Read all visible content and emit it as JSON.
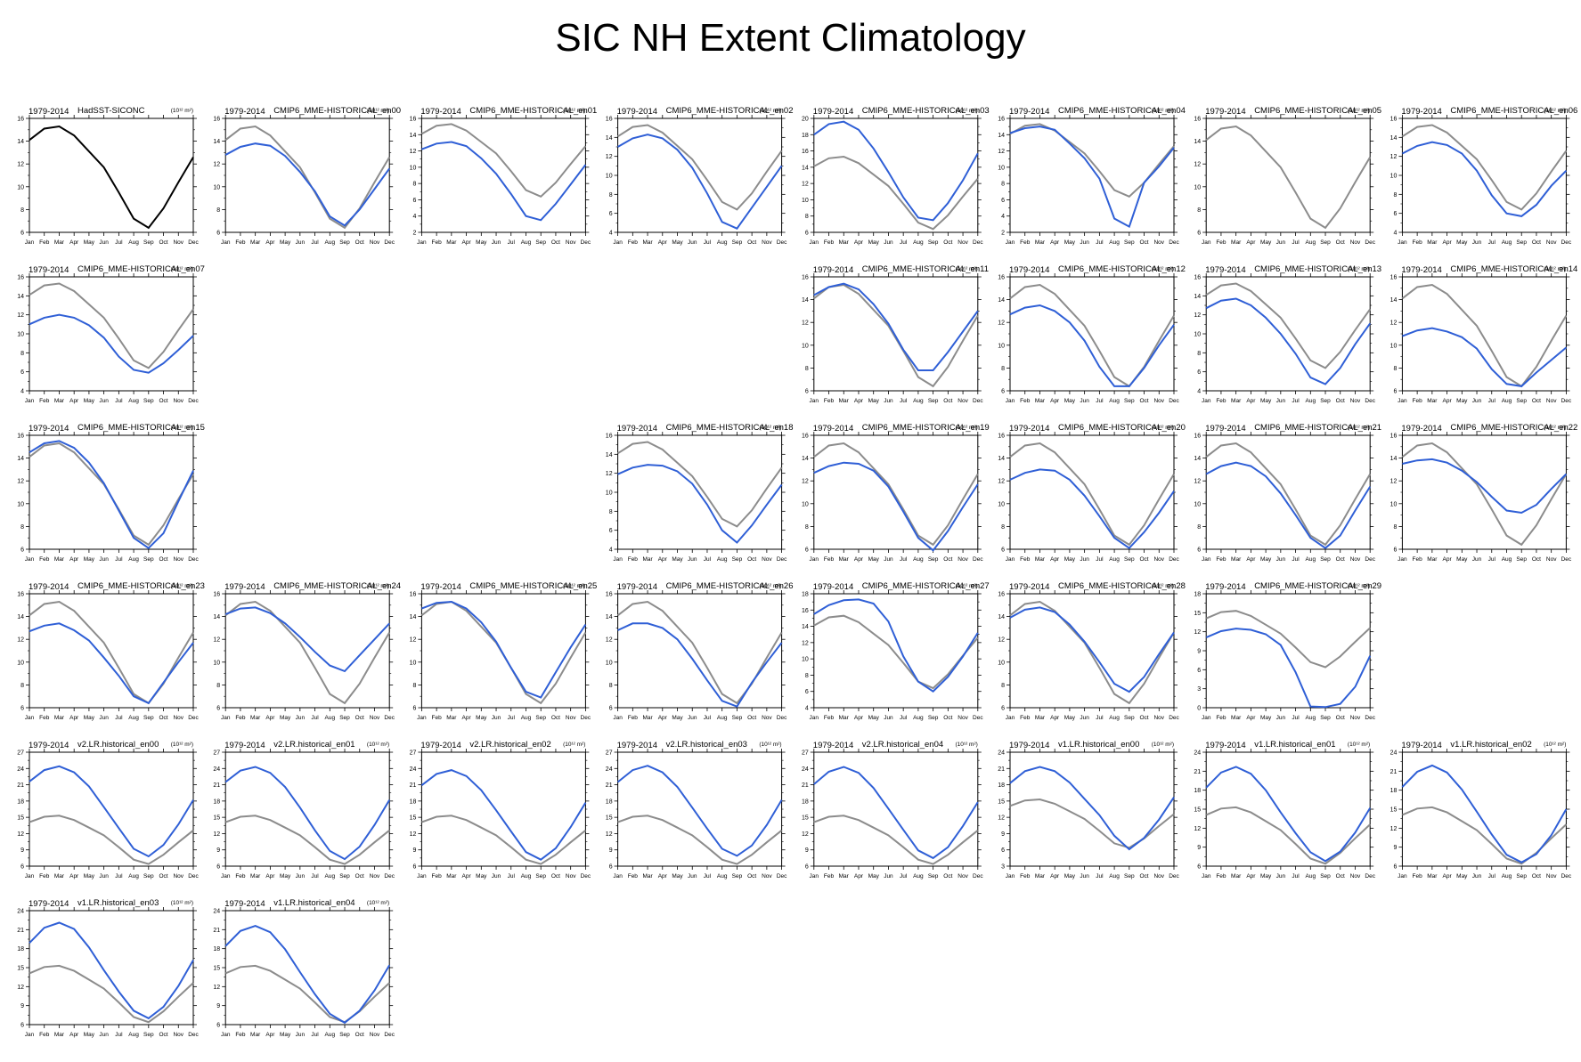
{
  "title": "SIC NH Extent Climatology",
  "colors": {
    "obs": "#000000",
    "obs_ref": "#8c8c8c",
    "model": "#2f5fd6"
  },
  "chart_data": {
    "type": "line",
    "title": "SIC NH Extent Climatology",
    "months": [
      "Jan",
      "Feb",
      "Mar",
      "Apr",
      "May",
      "Jun",
      "Jul",
      "Aug",
      "Sep",
      "Oct",
      "Nov",
      "Dec"
    ],
    "reference": [
      14.1,
      15.1,
      15.3,
      14.5,
      13.1,
      11.7,
      9.5,
      7.2,
      6.4,
      8.1,
      10.4,
      12.6
    ],
    "units": "(10¹² m²)",
    "period": "1979-2014",
    "panels": [
      {
        "name": "HadSST-SICONC",
        "ylim": [
          6,
          16
        ],
        "ticks": [
          6,
          8,
          10,
          12,
          14,
          16
        ],
        "obs": true,
        "values": [
          14.1,
          15.1,
          15.3,
          14.5,
          13.1,
          11.7,
          9.5,
          7.2,
          6.4,
          8.1,
          10.4,
          12.6
        ]
      },
      {
        "name": "CMIP6_MME-HISTORICAL_en00",
        "ylim": [
          6,
          16
        ],
        "ticks": [
          6,
          8,
          10,
          12,
          14,
          16
        ],
        "values": [
          12.8,
          13.5,
          13.8,
          13.6,
          12.7,
          11.3,
          9.6,
          7.4,
          6.6,
          8.0,
          9.8,
          11.6
        ]
      },
      {
        "name": "CMIP6_MME-HISTORICAL_en01",
        "ylim": [
          2,
          16
        ],
        "ticks": [
          2,
          4,
          6,
          8,
          10,
          12,
          14,
          16
        ],
        "values": [
          12.2,
          12.9,
          13.1,
          12.6,
          11.1,
          9.2,
          6.7,
          4.0,
          3.5,
          5.5,
          7.9,
          10.3
        ]
      },
      {
        "name": "CMIP6_MME-HISTORICAL_en02",
        "ylim": [
          4,
          16
        ],
        "ticks": [
          4,
          6,
          8,
          10,
          12,
          14,
          16
        ],
        "values": [
          13.0,
          13.9,
          14.3,
          13.9,
          12.7,
          10.8,
          8.1,
          5.1,
          4.4,
          6.6,
          8.8,
          11.0
        ]
      },
      {
        "name": "CMIP6_MME-HISTORICAL_en03",
        "ylim": [
          6,
          20
        ],
        "ticks": [
          6,
          8,
          10,
          12,
          14,
          16,
          18,
          20
        ],
        "values": [
          18.0,
          19.3,
          19.6,
          18.6,
          16.3,
          13.4,
          10.3,
          7.8,
          7.5,
          9.6,
          12.4,
          15.7
        ]
      },
      {
        "name": "CMIP6_MME-HISTORICAL_en04",
        "ylim": [
          2,
          16
        ],
        "ticks": [
          2,
          4,
          6,
          8,
          10,
          12,
          14,
          16
        ],
        "values": [
          14.2,
          14.8,
          15.0,
          14.6,
          12.9,
          11.1,
          8.6,
          3.7,
          2.7,
          8.1,
          10.1,
          12.4
        ]
      },
      {
        "name": "CMIP6_MME-HISTORICAL_en05",
        "ylim": [
          6,
          16
        ],
        "ticks": [
          6,
          8,
          10,
          12,
          14,
          16
        ],
        "values": null
      },
      {
        "name": "CMIP6_MME-HISTORICAL_en06",
        "ylim": [
          4,
          16
        ],
        "ticks": [
          4,
          6,
          8,
          10,
          12,
          14,
          16
        ],
        "values": [
          12.3,
          13.1,
          13.5,
          13.2,
          12.3,
          10.5,
          7.9,
          6.0,
          5.7,
          6.9,
          8.9,
          10.5
        ]
      },
      {
        "name": "CMIP6_MME-HISTORICAL_en07",
        "ylim": [
          4,
          16
        ],
        "ticks": [
          4,
          6,
          8,
          10,
          12,
          14,
          16
        ],
        "values": [
          11.0,
          11.7,
          12.0,
          11.7,
          10.9,
          9.6,
          7.6,
          6.2,
          5.9,
          6.9,
          8.3,
          9.8
        ]
      },
      null,
      null,
      null,
      {
        "name": "CMIP6_MME-HISTORICAL_en11",
        "ylim": [
          6,
          16
        ],
        "ticks": [
          6,
          8,
          10,
          12,
          14,
          16
        ],
        "values": [
          14.4,
          15.1,
          15.4,
          14.9,
          13.6,
          11.9,
          9.6,
          7.8,
          7.8,
          9.4,
          11.2,
          13.0
        ]
      },
      {
        "name": "CMIP6_MME-HISTORICAL_en12",
        "ylim": [
          6,
          16
        ],
        "ticks": [
          6,
          8,
          10,
          12,
          14,
          16
        ],
        "values": [
          12.7,
          13.3,
          13.5,
          13.0,
          12.0,
          10.4,
          8.1,
          6.4,
          6.4,
          8.0,
          10.0,
          11.8
        ]
      },
      {
        "name": "CMIP6_MME-HISTORICAL_en13",
        "ylim": [
          4,
          16
        ],
        "ticks": [
          4,
          6,
          8,
          10,
          12,
          14,
          16
        ],
        "values": [
          12.7,
          13.5,
          13.7,
          13.0,
          11.7,
          10.0,
          7.9,
          5.4,
          4.7,
          6.4,
          8.9,
          11.1
        ]
      },
      {
        "name": "CMIP6_MME-HISTORICAL_en14",
        "ylim": [
          6,
          16
        ],
        "ticks": [
          6,
          8,
          10,
          12,
          14,
          16
        ],
        "values": [
          10.8,
          11.3,
          11.5,
          11.2,
          10.7,
          9.7,
          7.9,
          6.6,
          6.4,
          7.6,
          8.7,
          9.8
        ]
      },
      {
        "name": "CMIP6_MME-HISTORICAL_en15",
        "ylim": [
          6,
          16
        ],
        "ticks": [
          6,
          8,
          10,
          12,
          14,
          16
        ],
        "values": [
          14.5,
          15.3,
          15.5,
          14.9,
          13.6,
          11.8,
          9.4,
          7.0,
          6.1,
          7.4,
          10.2,
          12.9
        ]
      },
      null,
      null,
      {
        "name": "CMIP6_MME-HISTORICAL_en18",
        "ylim": [
          4,
          16
        ],
        "ticks": [
          4,
          6,
          8,
          10,
          12,
          14,
          16
        ],
        "values": [
          11.9,
          12.6,
          12.9,
          12.8,
          12.2,
          10.9,
          8.7,
          6.0,
          4.7,
          6.5,
          8.7,
          10.8
        ]
      },
      {
        "name": "CMIP6_MME-HISTORICAL_en19",
        "ylim": [
          6,
          16
        ],
        "ticks": [
          6,
          8,
          10,
          12,
          14,
          16
        ],
        "values": [
          12.7,
          13.3,
          13.6,
          13.5,
          12.9,
          11.5,
          9.3,
          7.0,
          5.9,
          7.6,
          9.7,
          11.7
        ]
      },
      {
        "name": "CMIP6_MME-HISTORICAL_en20",
        "ylim": [
          6,
          16
        ],
        "ticks": [
          6,
          8,
          10,
          12,
          14,
          16
        ],
        "values": [
          12.1,
          12.7,
          13.0,
          12.9,
          12.1,
          10.7,
          8.9,
          7.0,
          6.1,
          7.5,
          9.2,
          11.1
        ]
      },
      {
        "name": "CMIP6_MME-HISTORICAL_en21",
        "ylim": [
          6,
          16
        ],
        "ticks": [
          6,
          8,
          10,
          12,
          14,
          16
        ],
        "values": [
          12.6,
          13.3,
          13.6,
          13.3,
          12.4,
          10.9,
          9.0,
          7.0,
          6.1,
          7.2,
          9.4,
          11.5
        ]
      },
      {
        "name": "CMIP6_MME-HISTORICAL_en22",
        "ylim": [
          6,
          16
        ],
        "ticks": [
          6,
          8,
          10,
          12,
          14,
          16
        ],
        "values": [
          13.5,
          13.8,
          13.9,
          13.6,
          12.9,
          11.9,
          10.6,
          9.4,
          9.2,
          9.9,
          11.3,
          12.6
        ]
      },
      {
        "name": "CMIP6_MME-HISTORICAL_en23",
        "ylim": [
          6,
          16
        ],
        "ticks": [
          6,
          8,
          10,
          12,
          14,
          16
        ],
        "values": [
          12.7,
          13.2,
          13.4,
          12.8,
          11.9,
          10.4,
          8.8,
          7.0,
          6.4,
          8.2,
          10.0,
          11.7
        ]
      },
      {
        "name": "CMIP6_MME-HISTORICAL_en24",
        "ylim": [
          6,
          16
        ],
        "ticks": [
          6,
          8,
          10,
          12,
          14,
          16
        ],
        "values": [
          14.2,
          14.7,
          14.8,
          14.3,
          13.4,
          12.2,
          10.9,
          9.7,
          9.2,
          10.6,
          12.0,
          13.4
        ]
      },
      {
        "name": "CMIP6_MME-HISTORICAL_en25",
        "ylim": [
          6,
          16
        ],
        "ticks": [
          6,
          8,
          10,
          12,
          14,
          16
        ],
        "values": [
          14.7,
          15.2,
          15.3,
          14.7,
          13.5,
          11.8,
          9.5,
          7.4,
          6.9,
          9.1,
          11.3,
          13.3
        ]
      },
      {
        "name": "CMIP6_MME-HISTORICAL_en26",
        "ylim": [
          6,
          16
        ],
        "ticks": [
          6,
          8,
          10,
          12,
          14,
          16
        ],
        "values": [
          12.8,
          13.4,
          13.4,
          13.0,
          12.0,
          10.3,
          8.4,
          6.6,
          6.1,
          8.2,
          10.0,
          11.7
        ]
      },
      {
        "name": "CMIP6_MME-HISTORICAL_en27",
        "ylim": [
          4,
          18
        ],
        "ticks": [
          4,
          6,
          8,
          10,
          12,
          14,
          16,
          18
        ],
        "values": [
          15.5,
          16.6,
          17.2,
          17.3,
          16.8,
          14.6,
          10.3,
          7.2,
          6.0,
          7.8,
          10.3,
          13.2
        ]
      },
      {
        "name": "CMIP6_MME-HISTORICAL_en28",
        "ylim": [
          6,
          16
        ],
        "ticks": [
          6,
          8,
          10,
          12,
          14,
          16
        ],
        "values": [
          13.9,
          14.6,
          14.8,
          14.4,
          13.3,
          11.8,
          10.0,
          8.1,
          7.4,
          8.7,
          10.7,
          12.6
        ]
      },
      {
        "name": "CMIP6_MME-HISTORICAL_en29",
        "ylim": [
          0,
          18
        ],
        "ticks": [
          0,
          3,
          6,
          9,
          12,
          15,
          18
        ],
        "values": [
          11.1,
          12.1,
          12.5,
          12.3,
          11.6,
          9.9,
          5.6,
          0.2,
          0.1,
          0.6,
          3.3,
          8.2
        ]
      },
      null,
      {
        "name": "v2.LR.historical_en00",
        "ylim": [
          6,
          27
        ],
        "ticks": [
          6,
          9,
          12,
          15,
          18,
          21,
          24,
          27
        ],
        "values": [
          21.6,
          23.7,
          24.4,
          23.3,
          20.7,
          16.9,
          13.0,
          9.2,
          7.8,
          9.9,
          13.7,
          18.2
        ]
      },
      {
        "name": "v2.LR.historical_en01",
        "ylim": [
          6,
          27
        ],
        "ticks": [
          6,
          9,
          12,
          15,
          18,
          21,
          24,
          27
        ],
        "values": [
          21.5,
          23.6,
          24.3,
          23.2,
          20.6,
          16.8,
          12.6,
          8.8,
          7.3,
          9.6,
          13.6,
          18.2
        ]
      },
      {
        "name": "v2.LR.historical_en02",
        "ylim": [
          6,
          27
        ],
        "ticks": [
          6,
          9,
          12,
          15,
          18,
          21,
          24,
          27
        ],
        "values": [
          20.9,
          23.0,
          23.7,
          22.6,
          20.0,
          16.3,
          12.4,
          8.6,
          7.2,
          9.3,
          13.2,
          17.7
        ]
      },
      {
        "name": "v2.LR.historical_en03",
        "ylim": [
          6,
          27
        ],
        "ticks": [
          6,
          9,
          12,
          15,
          18,
          21,
          24,
          27
        ],
        "values": [
          21.5,
          23.7,
          24.5,
          23.3,
          20.6,
          16.8,
          12.9,
          9.2,
          7.9,
          9.8,
          13.6,
          18.2
        ]
      },
      {
        "name": "v2.LR.historical_en04",
        "ylim": [
          6,
          27
        ],
        "ticks": [
          6,
          9,
          12,
          15,
          18,
          21,
          24,
          27
        ],
        "values": [
          21.1,
          23.4,
          24.3,
          23.2,
          20.4,
          16.6,
          12.7,
          8.9,
          7.5,
          9.5,
          13.4,
          17.8
        ]
      },
      {
        "name": "v1.LR.historical_en00",
        "ylim": [
          3,
          24
        ],
        "ticks": [
          3,
          6,
          9,
          12,
          15,
          18,
          21,
          24
        ],
        "values": [
          18.3,
          20.5,
          21.3,
          20.5,
          18.4,
          15.4,
          12.4,
          8.6,
          6.1,
          8.2,
          11.6,
          15.7
        ]
      },
      {
        "name": "v1.LR.historical_en01",
        "ylim": [
          6,
          24
        ],
        "ticks": [
          6,
          9,
          12,
          15,
          18,
          21,
          24
        ],
        "values": [
          18.4,
          20.8,
          21.7,
          20.6,
          18.0,
          14.5,
          11.2,
          8.2,
          6.8,
          8.3,
          11.3,
          15.2
        ]
      },
      {
        "name": "v1.LR.historical_en02",
        "ylim": [
          6,
          24
        ],
        "ticks": [
          6,
          9,
          12,
          15,
          18,
          21,
          24
        ],
        "values": [
          18.5,
          20.9,
          21.9,
          20.8,
          18.1,
          14.6,
          11.0,
          7.8,
          6.6,
          7.9,
          10.9,
          15.0
        ]
      },
      {
        "name": "v1.LR.historical_en03",
        "ylim": [
          6,
          24
        ],
        "ticks": [
          6,
          9,
          12,
          15,
          18,
          21,
          24
        ],
        "values": [
          18.9,
          21.3,
          22.1,
          21.1,
          18.2,
          14.6,
          11.2,
          8.2,
          7.0,
          8.8,
          12.1,
          16.2
        ]
      },
      {
        "name": "v1.LR.historical_en04",
        "ylim": [
          6,
          24
        ],
        "ticks": [
          6,
          9,
          12,
          15,
          18,
          21,
          24
        ],
        "values": [
          18.4,
          20.8,
          21.6,
          20.6,
          17.9,
          14.3,
          10.8,
          7.7,
          6.3,
          8.2,
          11.4,
          15.4
        ]
      }
    ]
  }
}
